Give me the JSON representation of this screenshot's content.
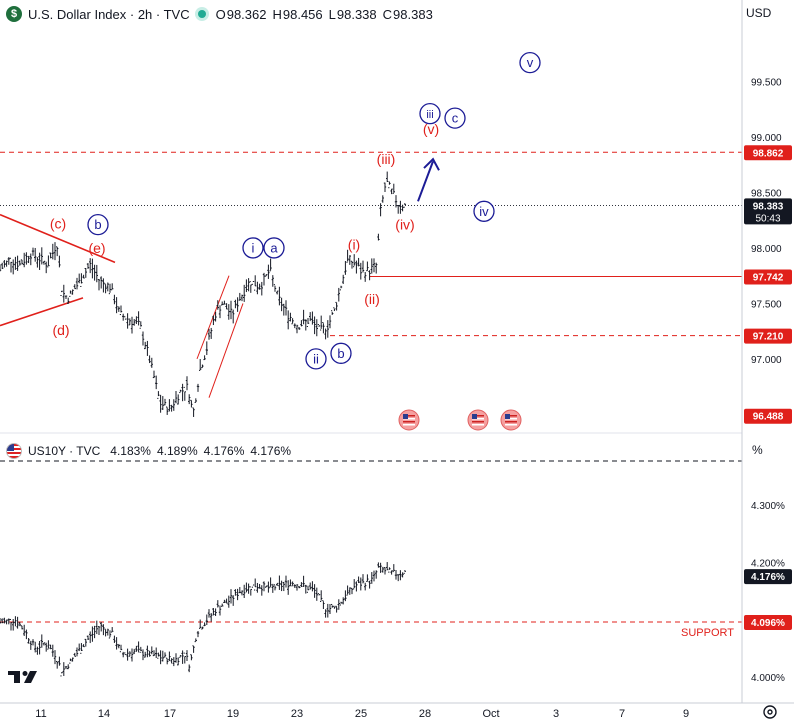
{
  "main_header": {
    "symbol_logo": "$",
    "title": "U.S. Dollar Index · 2h · TVC",
    "o_label": "O",
    "o_value": "98.362",
    "h_label": "H",
    "h_value": "98.456",
    "l_label": "L",
    "l_value": "98.338",
    "c_label": "C",
    "c_value": "98.383",
    "currency": "USD"
  },
  "sub_header": {
    "title": "US10Y · TVC",
    "values": [
      "4.183%",
      "4.189%",
      "4.176%",
      "4.176%"
    ],
    "unit": "%"
  },
  "colors": {
    "red": "#e0201b",
    "navy": "#1c1c96",
    "bar": "#131722",
    "axis_bg": "#ffffff"
  },
  "chart_data": [
    {
      "type": "ohlc",
      "symbol": "U.S. Dollar Index",
      "interval": "2h",
      "ylim": [
        96.35,
        100.0
      ],
      "y_ticks": [
        "99.500",
        "99.000",
        "98.500",
        "98.000",
        "97.500",
        "97.000"
      ],
      "y_tick_values": [
        99.5,
        99.0,
        98.5,
        98.0,
        97.5,
        97.0
      ],
      "x_ticks": [
        "11",
        "14",
        "17",
        "19",
        "23",
        "25",
        "28",
        "Oct",
        "3",
        "7",
        "9"
      ],
      "price_path": [
        [
          0,
          97.8
        ],
        [
          10,
          97.9
        ],
        [
          20,
          97.85
        ],
        [
          30,
          97.95
        ],
        [
          40,
          97.9
        ],
        [
          48,
          97.85
        ],
        [
          57,
          98.05
        ],
        [
          62,
          97.6
        ],
        [
          68,
          97.55
        ],
        [
          80,
          97.7
        ],
        [
          90,
          97.85
        ],
        [
          100,
          97.7
        ],
        [
          110,
          97.65
        ],
        [
          120,
          97.4
        ],
        [
          130,
          97.35
        ],
        [
          140,
          97.3
        ],
        [
          148,
          97.05
        ],
        [
          155,
          96.8
        ],
        [
          160,
          96.6
        ],
        [
          170,
          96.55
        ],
        [
          180,
          96.7
        ],
        [
          188,
          96.75
        ],
        [
          193,
          96.5
        ],
        [
          200,
          96.9
        ],
        [
          207,
          97.1
        ],
        [
          215,
          97.4
        ],
        [
          222,
          97.5
        ],
        [
          232,
          97.4
        ],
        [
          240,
          97.55
        ],
        [
          250,
          97.7
        ],
        [
          260,
          97.65
        ],
        [
          270,
          97.8
        ],
        [
          278,
          97.55
        ],
        [
          288,
          97.4
        ],
        [
          298,
          97.3
        ],
        [
          310,
          97.35
        ],
        [
          320,
          97.25
        ],
        [
          328,
          97.3
        ],
        [
          335,
          97.45
        ],
        [
          342,
          97.7
        ],
        [
          348,
          97.9
        ],
        [
          356,
          97.85
        ],
        [
          362,
          97.78
        ],
        [
          370,
          97.8
        ],
        [
          377,
          97.85
        ],
        [
          380,
          98.3
        ],
        [
          386,
          98.6
        ],
        [
          392,
          98.5
        ],
        [
          398,
          98.4
        ],
        [
          405,
          98.38
        ]
      ],
      "price_tags": [
        {
          "value": 98.862,
          "label": "98.862",
          "style": "red"
        },
        {
          "value": 98.383,
          "label": "98.383",
          "sub": "50:43",
          "style": "dark"
        },
        {
          "value": 97.742,
          "label": "97.742",
          "style": "red"
        },
        {
          "value": 97.21,
          "label": "97.210",
          "style": "red"
        },
        {
          "value": 96.488,
          "label": "96.488",
          "style": "red"
        }
      ],
      "horizontal_levels": [
        {
          "value": 98.862,
          "style": "dashed",
          "from_x": 0
        },
        {
          "value": 97.742,
          "style": "solid",
          "from_x": 370
        },
        {
          "value": 97.21,
          "style": "dashed",
          "from_x": 330
        }
      ],
      "wave_labels_red": [
        {
          "text": "(c)",
          "x": 58,
          "y": 98.22
        },
        {
          "text": "(e)",
          "x": 97,
          "y": 98.0
        },
        {
          "text": "(d)",
          "x": 61,
          "y": 97.26
        },
        {
          "text": "(i)",
          "x": 354,
          "y": 98.03
        },
        {
          "text": "(ii)",
          "x": 372,
          "y": 97.54
        },
        {
          "text": "(iii)",
          "x": 386,
          "y": 98.8
        },
        {
          "text": "(iv)",
          "x": 405,
          "y": 98.21
        },
        {
          "text": "(v)",
          "x": 431,
          "y": 99.07
        }
      ],
      "wave_labels_navy": [
        {
          "text": "b",
          "x": 98,
          "y": 98.21
        },
        {
          "text": "i",
          "x": 253,
          "y": 98.0
        },
        {
          "text": "a",
          "x": 274,
          "y": 98.0
        },
        {
          "text": "ii",
          "x": 316,
          "y": 97.0
        },
        {
          "text": "b",
          "x": 341,
          "y": 97.05
        },
        {
          "text": "iii",
          "x": 430,
          "y": 99.21
        },
        {
          "text": "c",
          "x": 455,
          "y": 99.17
        },
        {
          "text": "iv",
          "x": 484,
          "y": 98.33
        },
        {
          "text": "v",
          "x": 530,
          "y": 99.67
        }
      ],
      "events_count": 3,
      "events_x": [
        409,
        478,
        511
      ]
    },
    {
      "type": "ohlc",
      "symbol": "US10Y",
      "ylim": [
        3.96,
        4.375
      ],
      "y_ticks": [
        "4.300%",
        "4.200%",
        "4.000%"
      ],
      "y_tick_values": [
        4.3,
        4.2,
        4.0
      ],
      "yield_path": [
        [
          0,
          4.095
        ],
        [
          15,
          4.1
        ],
        [
          25,
          4.08
        ],
        [
          35,
          4.05
        ],
        [
          45,
          4.06
        ],
        [
          55,
          4.04
        ],
        [
          62,
          4.01
        ],
        [
          72,
          4.03
        ],
        [
          85,
          4.06
        ],
        [
          100,
          4.09
        ],
        [
          112,
          4.075
        ],
        [
          122,
          4.04
        ],
        [
          135,
          4.045
        ],
        [
          150,
          4.04
        ],
        [
          160,
          4.035
        ],
        [
          175,
          4.03
        ],
        [
          185,
          4.04
        ],
        [
          190,
          4.02
        ],
        [
          197,
          4.08
        ],
        [
          207,
          4.1
        ],
        [
          217,
          4.12
        ],
        [
          227,
          4.13
        ],
        [
          240,
          4.15
        ],
        [
          255,
          4.16
        ],
        [
          270,
          4.155
        ],
        [
          282,
          4.16
        ],
        [
          292,
          4.165
        ],
        [
          302,
          4.16
        ],
        [
          315,
          4.15
        ],
        [
          325,
          4.12
        ],
        [
          335,
          4.12
        ],
        [
          345,
          4.14
        ],
        [
          355,
          4.16
        ],
        [
          365,
          4.165
        ],
        [
          373,
          4.17
        ],
        [
          378,
          4.19
        ],
        [
          386,
          4.185
        ],
        [
          395,
          4.18
        ],
        [
          405,
          4.183
        ]
      ],
      "price_tags": [
        {
          "value": 4.176,
          "label": "4.176%",
          "style": "dark"
        },
        {
          "value": 4.096,
          "label": "4.096%",
          "style": "red"
        }
      ],
      "support_label": "SUPPORT",
      "support_value": 4.096
    }
  ]
}
